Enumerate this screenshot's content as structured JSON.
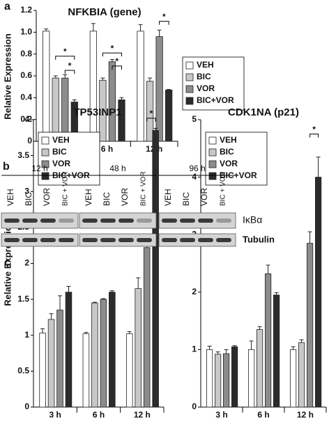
{
  "chart_data": [
    {
      "type": "bar",
      "panel": "a",
      "title": "NFKBIA (gene)",
      "y_label": "Relative Expression",
      "categories": [
        "3 h",
        "6 h",
        "12 h"
      ],
      "ylim": [
        0,
        1.2
      ],
      "yticks": [
        0,
        0.2,
        0.4,
        0.6,
        0.8,
        {
          "value": 1,
          "label": "1.0"
        },
        1.2
      ],
      "legend": "right",
      "series": [
        {
          "name": "VEH",
          "color": "#ffffff",
          "values": [
            1.01,
            1.01,
            1.01
          ],
          "errors": [
            0.02,
            0.07,
            0.06
          ]
        },
        {
          "name": "BIC",
          "color": "#c8c8c8",
          "values": [
            0.58,
            0.56,
            0.55
          ],
          "errors": [
            0.02,
            0.02,
            0.03
          ]
        },
        {
          "name": "VOR",
          "color": "#8c8c8c",
          "values": [
            0.58,
            0.73,
            0.96
          ],
          "errors": [
            0.03,
            0.02,
            0.06
          ]
        },
        {
          "name": "BIC+VOR",
          "color": "#2b2b2b",
          "values": [
            0.36,
            0.38,
            0.47
          ],
          "errors": [
            0.02,
            0.02,
            0.005
          ]
        }
      ],
      "annotations": [
        "*",
        "*",
        "*",
        "*",
        "*"
      ]
    },
    {
      "type": "bar",
      "panel": "c",
      "title": "TP53INP1",
      "y_label": "Relative Expression",
      "categories": [
        "3 h",
        "6 h",
        "12 h"
      ],
      "ylim": [
        0,
        4
      ],
      "yticks": [
        0,
        0.5,
        1,
        1.5,
        2,
        2.5,
        3,
        3.5,
        4
      ],
      "legend": "upper left",
      "series": [
        {
          "name": "VEH",
          "color": "#ffffff",
          "values": [
            1.03,
            1.02,
            1.02
          ],
          "errors": [
            0.06,
            0.02,
            0.03
          ]
        },
        {
          "name": "BIC",
          "color": "#c8c8c8",
          "values": [
            1.22,
            1.45,
            1.65
          ],
          "errors": [
            0.08,
            0.01,
            0.15
          ]
        },
        {
          "name": "VOR",
          "color": "#8c8c8c",
          "values": [
            1.35,
            1.5,
            2.22
          ],
          "errors": [
            0.2,
            0.01,
            0.1
          ]
        },
        {
          "name": "BIC+VOR",
          "color": "#2b2b2b",
          "values": [
            1.6,
            1.6,
            3.85
          ],
          "errors": [
            0.08,
            0.02,
            0.03
          ]
        }
      ],
      "annotations": [
        "*"
      ]
    },
    {
      "type": "bar",
      "title": "CDK1NA (p21)",
      "categories": [
        "3 h",
        "6 h",
        "12 h"
      ],
      "ylim": [
        0,
        5
      ],
      "yticks": [
        0,
        1,
        2,
        3,
        4,
        5
      ],
      "legend": "upper left",
      "series": [
        {
          "name": "VEH",
          "color": "#ffffff",
          "values": [
            1.0,
            1.0,
            1.0
          ],
          "errors": [
            0.06,
            0.15,
            0.05
          ]
        },
        {
          "name": "BIC",
          "color": "#c8c8c8",
          "values": [
            0.92,
            1.35,
            1.12
          ],
          "errors": [
            0.04,
            0.05,
            0.05
          ]
        },
        {
          "name": "VOR",
          "color": "#8c8c8c",
          "values": [
            0.93,
            2.32,
            2.85
          ],
          "errors": [
            0.07,
            0.15,
            0.2
          ]
        },
        {
          "name": "BIC+VOR",
          "color": "#2b2b2b",
          "values": [
            1.05,
            1.95,
            4.0
          ],
          "errors": [
            0.02,
            0.04,
            0.35
          ]
        }
      ],
      "annotations": [
        "*"
      ]
    }
  ],
  "blot": {
    "panel": "b",
    "times": [
      "12 h",
      "48 h",
      "96 h"
    ],
    "lanes": [
      "VEH",
      "BIC",
      "VOR",
      "BIC + VOR"
    ],
    "rows": [
      "IκBα",
      "Tubulin"
    ]
  }
}
